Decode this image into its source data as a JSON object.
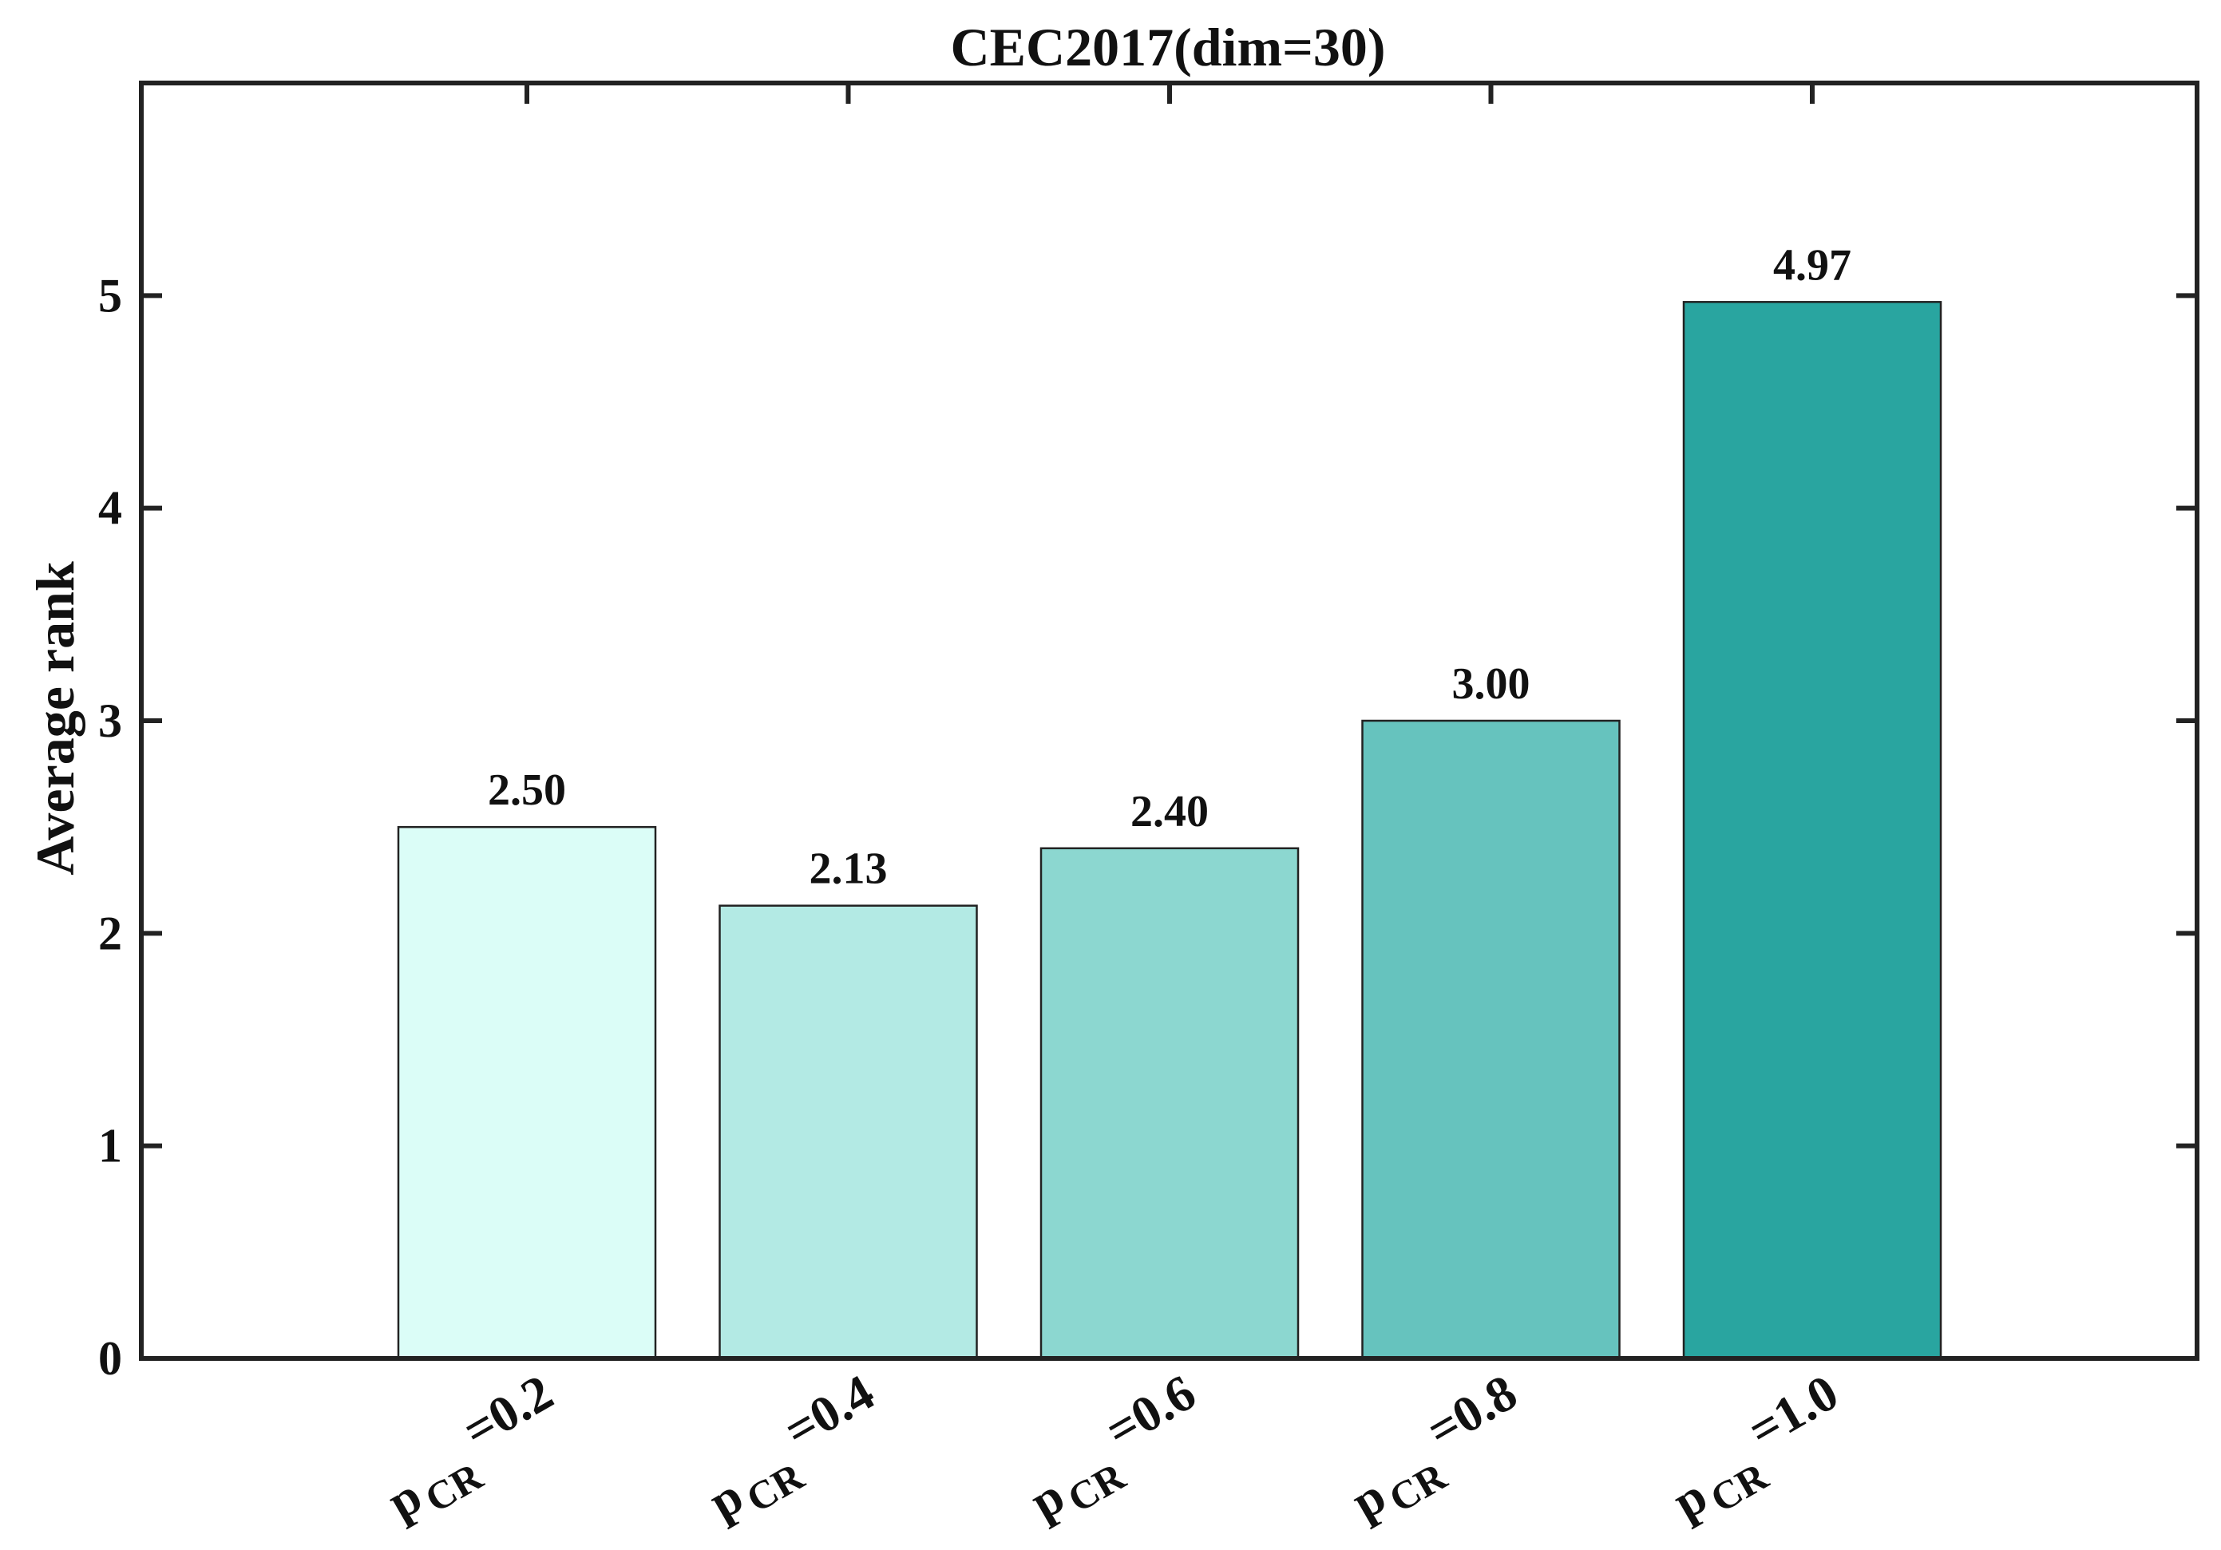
{
  "chart_data": {
    "type": "bar",
    "title": "CEC2017(dim=30)",
    "ylabel": "Average rank",
    "xlabel": "",
    "ylim": [
      0,
      6
    ],
    "yticks": [
      0,
      1,
      2,
      3,
      4,
      5
    ],
    "grid": false,
    "legend": "none",
    "categories": [
      {
        "main": "p",
        "sub": "CR",
        "value_text": "=0.2"
      },
      {
        "main": "p",
        "sub": "CR",
        "value_text": "=0.4"
      },
      {
        "main": "p",
        "sub": "CR",
        "value_text": "=0.6"
      },
      {
        "main": "p",
        "sub": "CR",
        "value_text": "=0.8"
      },
      {
        "main": "p",
        "sub": "CR",
        "value_text": "=1.0"
      }
    ],
    "values": [
      2.5,
      2.13,
      2.4,
      3.0,
      4.97
    ],
    "value_labels": [
      "2.50",
      "2.13",
      "2.40",
      "3.00",
      "4.97"
    ],
    "colors": [
      "#dbfdf7",
      "#b3eae4",
      "#8cd7d0",
      "#66c3be",
      "#29a5a0"
    ]
  }
}
